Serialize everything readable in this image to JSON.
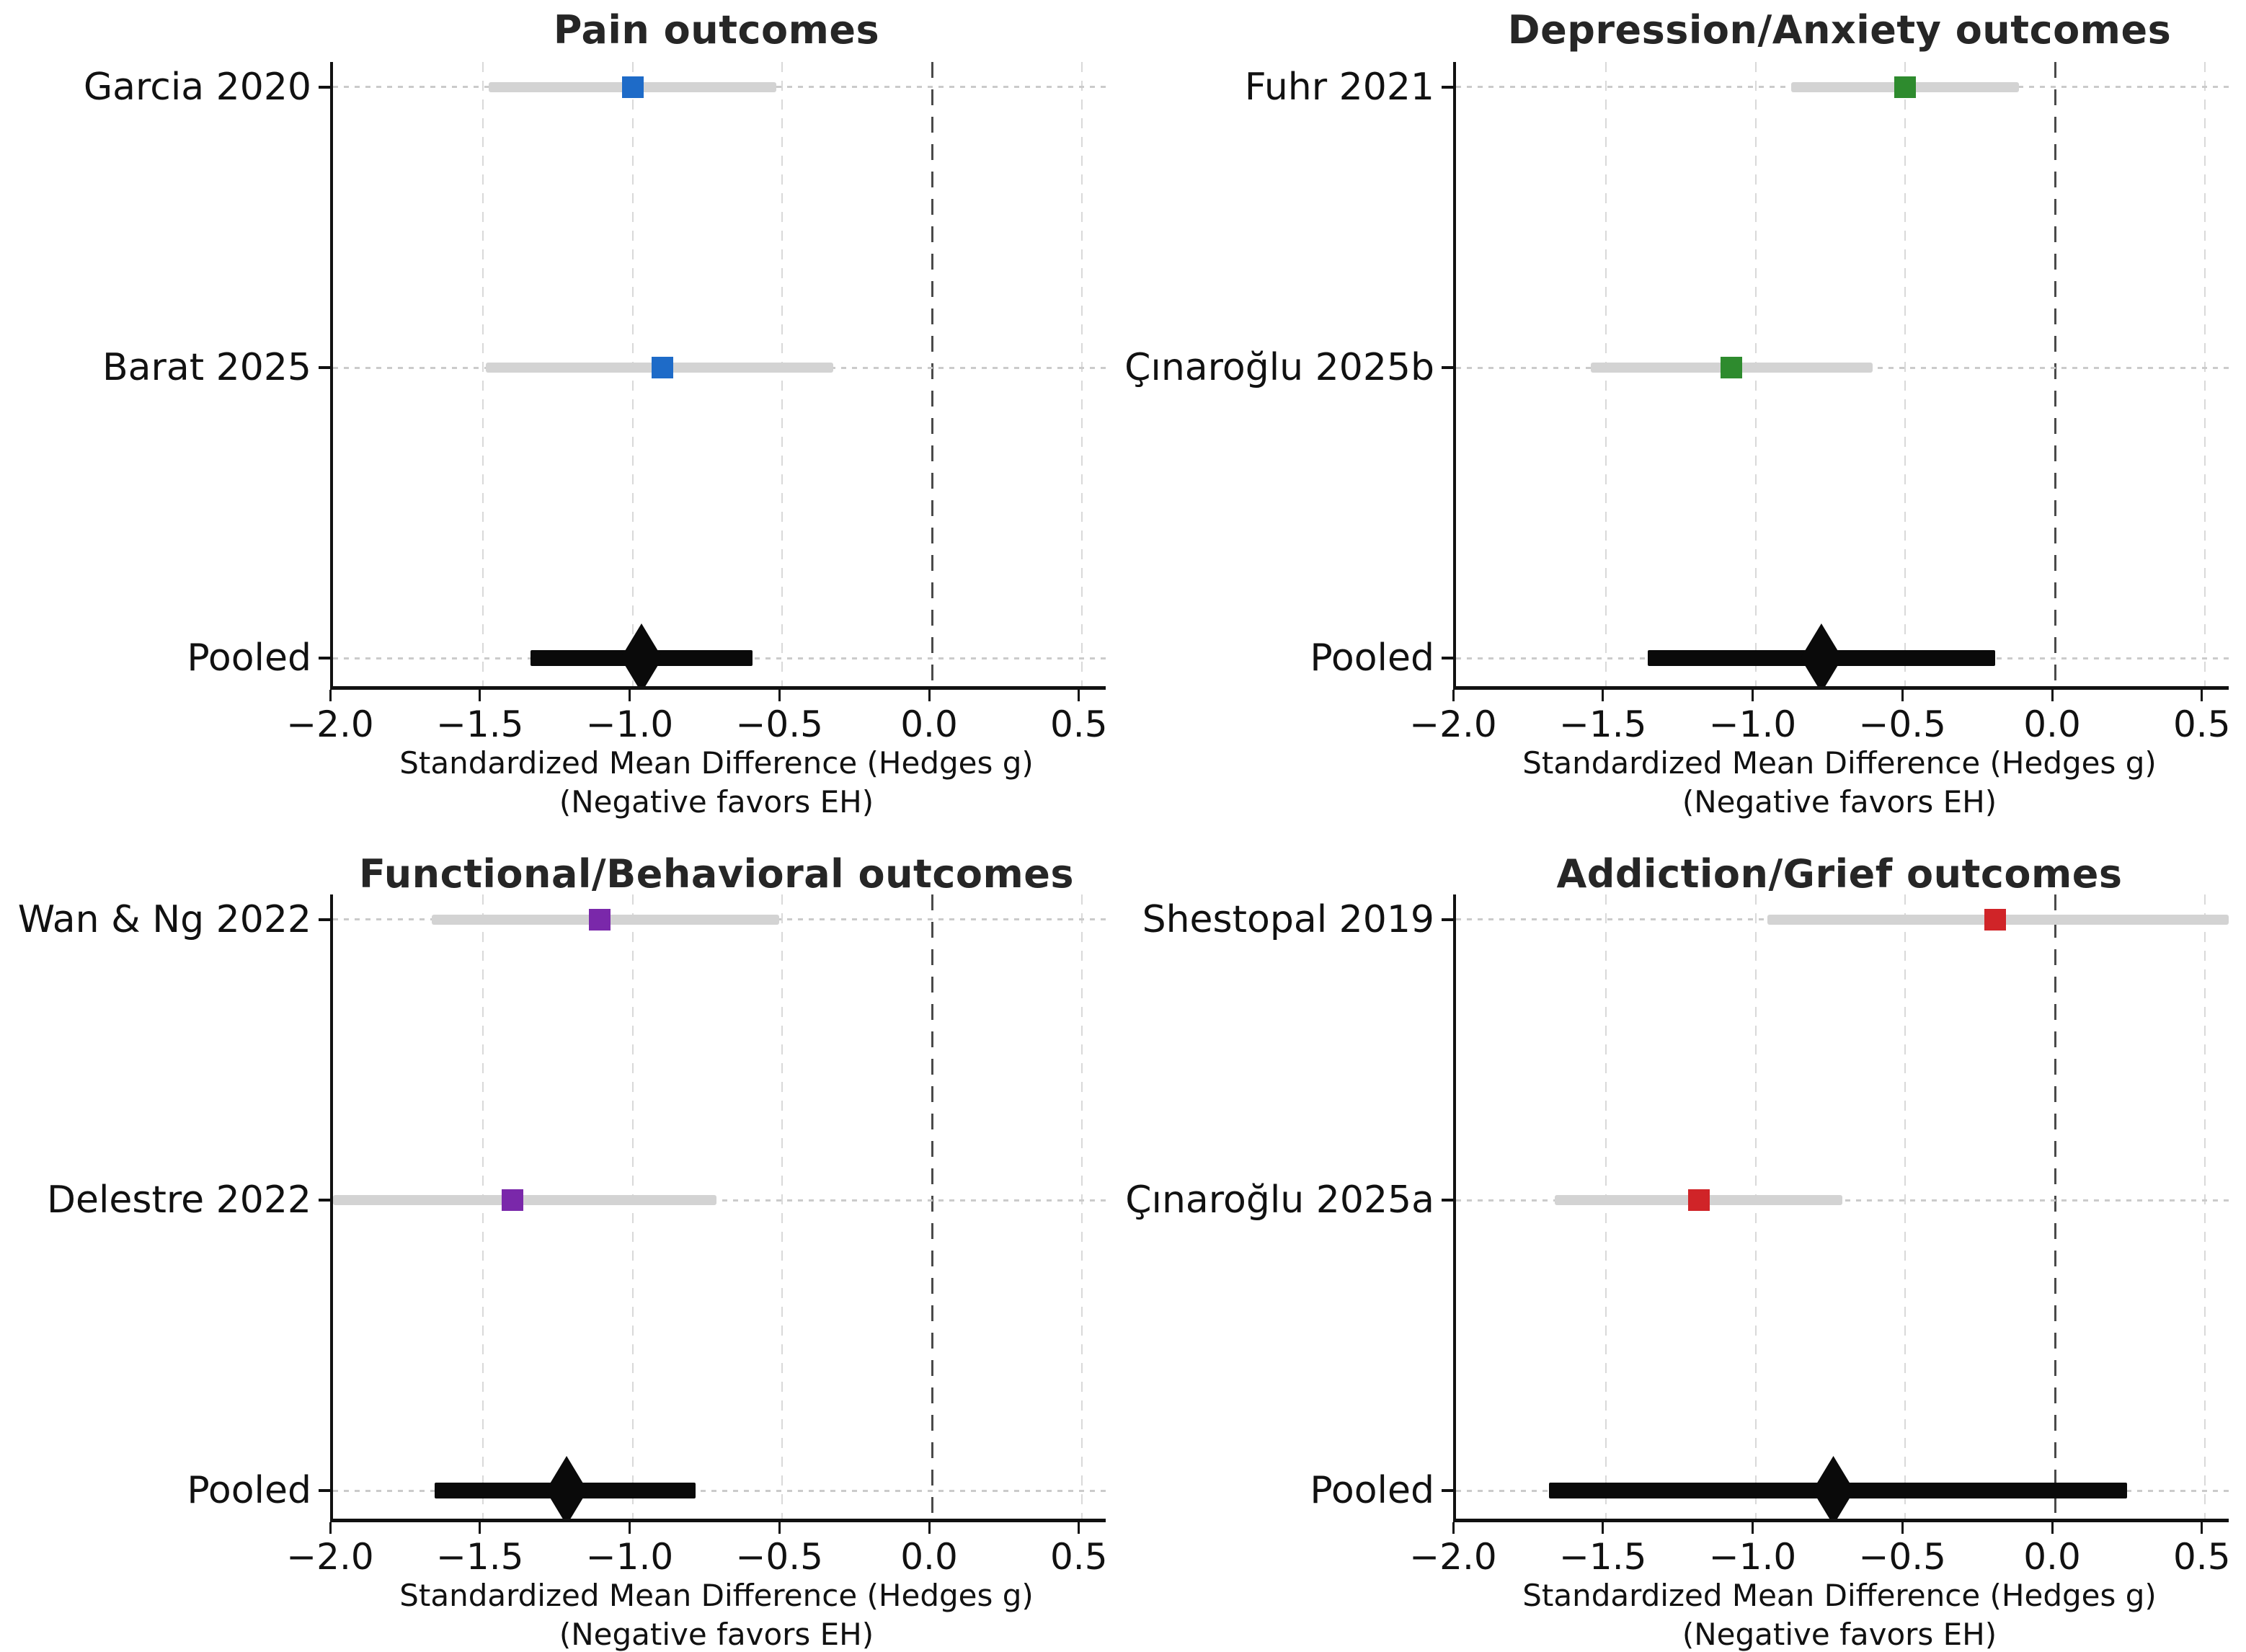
{
  "chart_data": [
    {
      "type": "forest",
      "title": "Pain outcomes",
      "color": "#1e6bc8",
      "xlabel_line1": "Standardized Mean Difference (Hedges g)",
      "xlabel_line2": "(Negative favors EH)",
      "xlim": [
        -2.0,
        0.58
      ],
      "xticks": [
        -2.0,
        -1.5,
        -1.0,
        -0.5,
        0.0,
        0.5
      ],
      "xtick_labels": [
        "−2.0",
        "−1.5",
        "−1.0",
        "−0.5",
        "0.0",
        "0.5"
      ],
      "zero_line": 0.0,
      "grid": true,
      "rows": [
        {
          "label": "Garcia 2020",
          "g": -1.0,
          "ci": [
            -1.48,
            -0.52
          ],
          "pooled": false
        },
        {
          "label": "Barat 2025",
          "g": -0.9,
          "ci": [
            -1.49,
            -0.33
          ],
          "pooled": false
        },
        {
          "label": "Pooled",
          "g": -0.97,
          "ci": [
            -1.34,
            -0.6
          ],
          "pooled": true
        }
      ]
    },
    {
      "type": "forest",
      "title": "Depression/Anxiety outcomes",
      "color": "#2e8b2e",
      "xlabel_line1": "Standardized Mean Difference (Hedges g)",
      "xlabel_line2": "(Negative favors EH)",
      "xlim": [
        -2.0,
        0.58
      ],
      "xticks": [
        -2.0,
        -1.5,
        -1.0,
        -0.5,
        0.0,
        0.5
      ],
      "xtick_labels": [
        "−2.0",
        "−1.5",
        "−1.0",
        "−0.5",
        "0.0",
        "0.5"
      ],
      "zero_line": 0.0,
      "grid": true,
      "rows": [
        {
          "label": "Fuhr 2021",
          "g": -0.5,
          "ci": [
            -0.88,
            -0.12
          ],
          "pooled": false
        },
        {
          "label": "Çınaroğlu 2025b",
          "g": -1.08,
          "ci": [
            -1.55,
            -0.61
          ],
          "pooled": false
        },
        {
          "label": "Pooled",
          "g": -0.78,
          "ci": [
            -1.36,
            -0.2
          ],
          "pooled": true
        }
      ]
    },
    {
      "type": "forest",
      "title": "Functional/Behavioral outcomes",
      "color": "#7a28aa",
      "xlabel_line1": "Standardized Mean Difference (Hedges g)",
      "xlabel_line2": "(Negative favors EH)",
      "xlim": [
        -2.0,
        0.58
      ],
      "xticks": [
        -2.0,
        -1.5,
        -1.0,
        -0.5,
        0.0,
        0.5
      ],
      "xtick_labels": [
        "−2.0",
        "−1.5",
        "−1.0",
        "−0.5",
        "0.0",
        "0.5"
      ],
      "zero_line": 0.0,
      "grid": true,
      "rows": [
        {
          "label": "Wan & Ng 2022",
          "g": -1.11,
          "ci": [
            -1.67,
            -0.51
          ],
          "pooled": false
        },
        {
          "label": "Delestre 2022",
          "g": -1.4,
          "ci": [
            -2.0,
            -0.72
          ],
          "pooled": false
        },
        {
          "label": "Pooled",
          "g": -1.22,
          "ci": [
            -1.66,
            -0.79
          ],
          "pooled": true
        }
      ]
    },
    {
      "type": "forest",
      "title": "Addiction/Grief outcomes",
      "color": "#d02428",
      "xlabel_line1": "Standardized Mean Difference (Hedges g)",
      "xlabel_line2": "(Negative favors EH)",
      "xlim": [
        -2.0,
        0.58
      ],
      "xticks": [
        -2.0,
        -1.5,
        -1.0,
        -0.5,
        0.0,
        0.5
      ],
      "xtick_labels": [
        "−2.0",
        "−1.5",
        "−1.0",
        "−0.5",
        "0.0",
        "0.5"
      ],
      "zero_line": 0.0,
      "grid": true,
      "rows": [
        {
          "label": "Shestopal 2019",
          "g": -0.2,
          "ci": [
            -0.96,
            0.58
          ],
          "pooled": false
        },
        {
          "label": "Çınaroğlu 2025a",
          "g": -1.19,
          "ci": [
            -1.67,
            -0.71
          ],
          "pooled": false
        },
        {
          "label": "Pooled",
          "g": -0.74,
          "ci": [
            -1.69,
            0.24
          ],
          "pooled": true
        }
      ]
    }
  ]
}
